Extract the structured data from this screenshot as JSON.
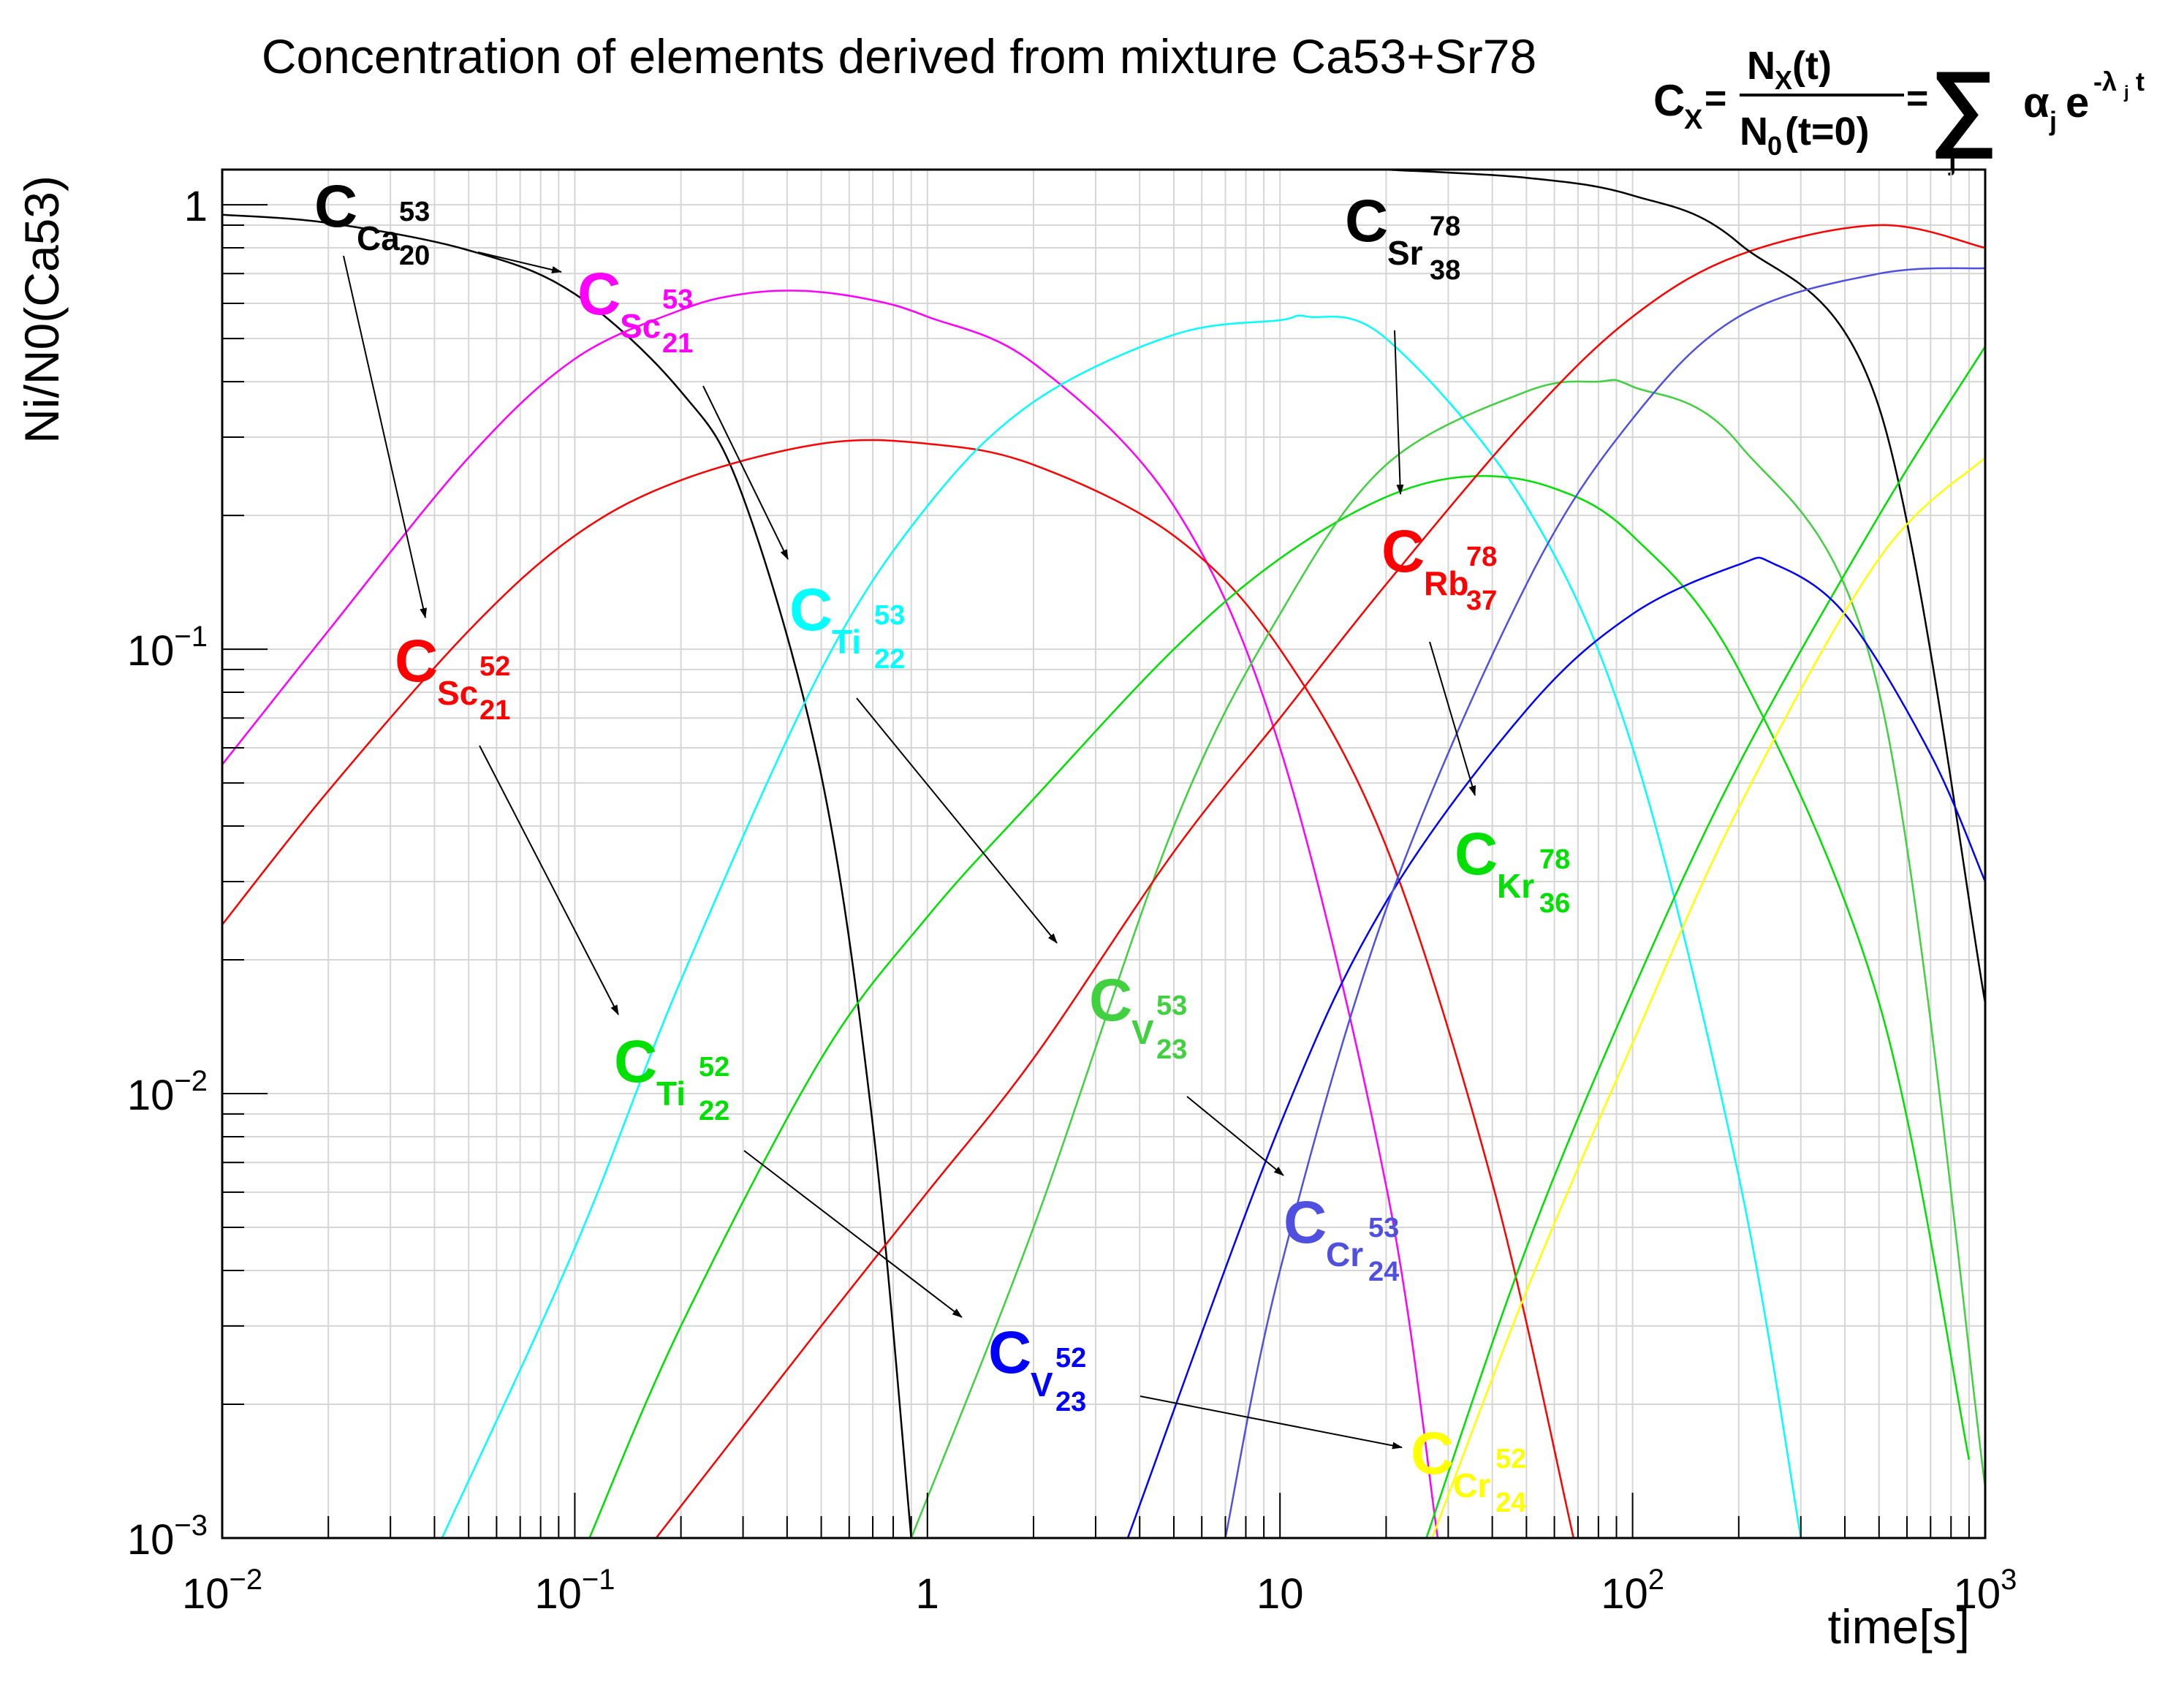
{
  "chart_data": {
    "type": "line",
    "title": "Concentration of elements derived from mixture Ca53+Sr78",
    "xlabel": "time[s]",
    "ylabel": "Ni/N0(Ca53)",
    "xscale": "log",
    "yscale": "log",
    "xlim": [
      0.01,
      1000
    ],
    "ylim": [
      0.001,
      1.2
    ],
    "grid": true,
    "x_tick_labels": [
      {
        "base": "10",
        "exp": "−2"
      },
      {
        "base": "10",
        "exp": "−1"
      },
      {
        "base": "1",
        "exp": ""
      },
      {
        "base": "10",
        "exp": ""
      },
      {
        "base": "10",
        "exp": "2"
      },
      {
        "base": "10",
        "exp": "3"
      }
    ],
    "y_tick_labels": [
      {
        "base": "10",
        "exp": "−3"
      },
      {
        "base": "10",
        "exp": "−2"
      },
      {
        "base": "10",
        "exp": "−1"
      },
      {
        "base": "1",
        "exp": ""
      }
    ],
    "formula": {
      "lhs": "C",
      "lhs_sub": "X",
      "eq1": "=",
      "num": "N",
      "num_sub": "X",
      "num_arg": "(t)",
      "den": "N",
      "den_sub": "0",
      "den_arg": "(t=0)",
      "eq2": "=",
      "sum": "∑",
      "sum_sub": "j",
      "alpha": "α",
      "alpha_sub": "j",
      "e": "e",
      "exp_text": "-λ",
      "exp_sub": "j",
      "exp_t": "t"
    },
    "series": [
      {
        "key": "ca53",
        "color": "#000000",
        "x": [
          0.01,
          0.02,
          0.05,
          0.1,
          0.2,
          0.3,
          0.5,
          0.7,
          0.9
        ],
        "y": [
          0.95,
          0.91,
          0.79,
          0.63,
          0.38,
          0.22,
          0.052,
          0.0085,
          0.001
        ]
      },
      {
        "key": "sc53",
        "color": "#ff00ff",
        "x": [
          0.01,
          0.02,
          0.05,
          0.1,
          0.2,
          0.3,
          0.45,
          0.7,
          1,
          2,
          5,
          10,
          20,
          28
        ],
        "y": [
          0.055,
          0.11,
          0.27,
          0.45,
          0.58,
          0.63,
          0.64,
          0.61,
          0.56,
          0.44,
          0.21,
          0.06,
          0.0062,
          0.001
        ]
      },
      {
        "key": "sc52",
        "color": "#ff0000",
        "x": [
          0.01,
          0.02,
          0.05,
          0.1,
          0.2,
          0.5,
          1,
          2,
          5,
          10,
          20,
          40,
          68
        ],
        "y": [
          0.024,
          0.048,
          0.11,
          0.18,
          0.24,
          0.29,
          0.29,
          0.26,
          0.18,
          0.1,
          0.036,
          0.0063,
          0.001
        ]
      },
      {
        "key": "ti53",
        "color": "#00ffff",
        "x": [
          0.042,
          0.1,
          0.2,
          0.5,
          1,
          2,
          5,
          10,
          12,
          20,
          50,
          100,
          200,
          300
        ],
        "y": [
          0.001,
          0.0045,
          0.018,
          0.09,
          0.21,
          0.36,
          0.51,
          0.55,
          0.56,
          0.5,
          0.21,
          0.06,
          0.0065,
          0.001
        ]
      },
      {
        "key": "ti52",
        "color": "#00e000",
        "x": [
          0.11,
          0.2,
          0.5,
          1,
          2,
          5,
          10,
          20,
          35,
          60,
          100,
          200,
          500,
          900
        ],
        "y": [
          0.001,
          0.003,
          0.012,
          0.025,
          0.046,
          0.1,
          0.16,
          0.22,
          0.245,
          0.23,
          0.18,
          0.09,
          0.016,
          0.0015
        ]
      },
      {
        "key": "v53",
        "color": "#40d040",
        "x": [
          0.9,
          2,
          5,
          10,
          20,
          50,
          80,
          100,
          200,
          500,
          1000
        ],
        "y": [
          0.001,
          0.005,
          0.04,
          0.12,
          0.26,
          0.38,
          0.4,
          0.39,
          0.29,
          0.08,
          0.0013
        ]
      },
      {
        "key": "rb78",
        "color": "#ff0000",
        "x": [
          0.17,
          0.5,
          1,
          2,
          5,
          10,
          20,
          50,
          100,
          200,
          500,
          1000
        ],
        "y": [
          0.001,
          0.003,
          0.006,
          0.012,
          0.035,
          0.07,
          0.14,
          0.33,
          0.56,
          0.77,
          0.9,
          0.8
        ]
      },
      {
        "key": "sr78",
        "color": "#000000",
        "x": [
          20,
          50,
          100,
          200,
          500,
          1000
        ],
        "y": [
          1.2,
          1.15,
          1.05,
          0.82,
          0.35,
          0.016
        ]
      },
      {
        "key": "kr78",
        "color": "#00e000",
        "x": [
          26,
          50,
          100,
          200,
          500,
          1000
        ],
        "y": [
          0.001,
          0.0045,
          0.017,
          0.055,
          0.2,
          0.48
        ]
      },
      {
        "key": "v52",
        "color": "#0000ff",
        "x": [
          3.7,
          10,
          20,
          50,
          100,
          200,
          250,
          400,
          700,
          1000
        ],
        "y": [
          0.001,
          0.0085,
          0.027,
          0.073,
          0.12,
          0.155,
          0.156,
          0.12,
          0.058,
          0.03
        ]
      },
      {
        "key": "cr53",
        "color": "#5050e0",
        "x": [
          7,
          10,
          20,
          50,
          100,
          200,
          500,
          1000
        ],
        "y": [
          0.001,
          0.004,
          0.026,
          0.14,
          0.33,
          0.56,
          0.7,
          0.72
        ]
      },
      {
        "key": "cr52",
        "color": "#ffff00",
        "x": [
          27,
          50,
          100,
          200,
          500,
          1000
        ],
        "y": [
          0.001,
          0.0036,
          0.013,
          0.044,
          0.16,
          0.27
        ]
      }
    ],
    "labels": [
      {
        "key": "ca53",
        "color": "#000000",
        "main": "C",
        "sym": "Ca",
        "mass": "53",
        "z": "20"
      },
      {
        "key": "sc53",
        "color": "#ff00ff",
        "main": "C",
        "sym": "Sc",
        "mass": "53",
        "z": "21"
      },
      {
        "key": "sr78",
        "color": "#000000",
        "main": "C",
        "sym": "Sr",
        "mass": "78",
        "z": "38"
      },
      {
        "key": "ti53",
        "color": "#00ffff",
        "main": "C",
        "sym": "Ti",
        "mass": "53",
        "z": "22"
      },
      {
        "key": "rb78",
        "color": "#ff0000",
        "main": "C",
        "sym": "Rb",
        "mass": "78",
        "z": "37"
      },
      {
        "key": "sc52",
        "color": "#ff0000",
        "main": "C",
        "sym": "Sc",
        "mass": "52",
        "z": "21"
      },
      {
        "key": "kr78",
        "color": "#00e000",
        "main": "C",
        "sym": "Kr",
        "mass": "78",
        "z": "36"
      },
      {
        "key": "v53",
        "color": "#40d040",
        "main": "C",
        "sym": "V",
        "mass": "53",
        "z": "23"
      },
      {
        "key": "ti52",
        "color": "#00e000",
        "main": "C",
        "sym": "Ti",
        "mass": "52",
        "z": "22"
      },
      {
        "key": "cr53",
        "color": "#5050e0",
        "main": "C",
        "sym": "Cr",
        "mass": "53",
        "z": "24"
      },
      {
        "key": "v52",
        "color": "#0000ff",
        "main": "C",
        "sym": "V",
        "mass": "52",
        "z": "23"
      },
      {
        "key": "cr52",
        "color": "#ffff00",
        "main": "C",
        "sym": "Cr",
        "mass": "52",
        "z": "24"
      }
    ]
  }
}
